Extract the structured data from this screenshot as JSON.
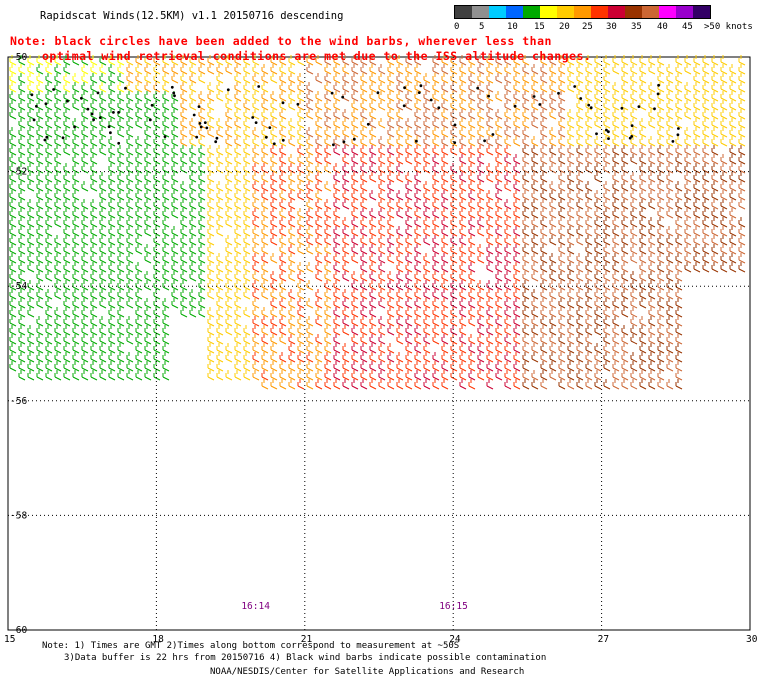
{
  "header": {
    "title": "Rapidscat Winds(12.5KM) v1.1 20150716 descending"
  },
  "note": {
    "line1": "Note: black circles have been added to the wind barbs, wherever less than",
    "line2": "optimal wind retrieval conditions are met due to the ISS altitude changes."
  },
  "legend": {
    "colors": [
      "#404040",
      "#909090",
      "#00ccff",
      "#0066ff",
      "#00aa00",
      "#ffff00",
      "#ffcc00",
      "#ff9900",
      "#ff3300",
      "#cc0033",
      "#993300",
      "#cc6633",
      "#ff00ff",
      "#9900cc",
      "#330066"
    ],
    "labels": [
      "0",
      "5",
      "10",
      "15",
      "20",
      "25",
      "30",
      "35",
      "40",
      "45",
      ">50 knots"
    ]
  },
  "map": {
    "x_labels": [
      "15",
      "18",
      "21",
      "24",
      "27",
      "30"
    ],
    "y_labels": [
      "-50",
      "-52",
      "-54",
      "-56",
      "-58",
      "-60"
    ],
    "time_labels": [
      "16:14",
      "16:15"
    ]
  },
  "footer": {
    "note1": "Note: 1) Times are GMT 2)Times along bottom correspond to measurement at ~50S",
    "note2": "3)Data buffer is 22 hrs from 20150716 4) Black wind barbs indicate possible contamination",
    "credit": "NOAA/NESDIS/Center for Satellite Applications and Research"
  }
}
